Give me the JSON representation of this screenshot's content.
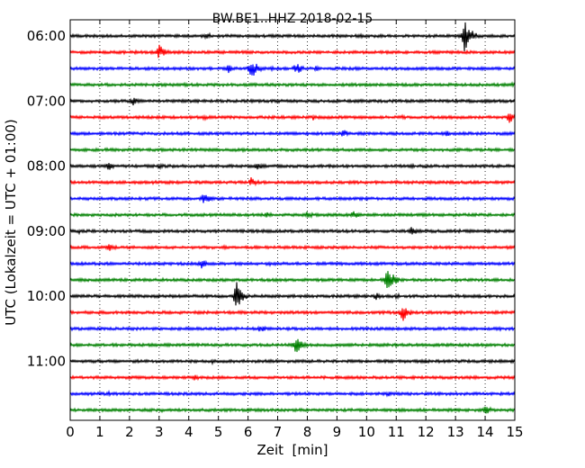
{
  "chart_data": {
    "type": "line",
    "title": "BW.BE1..HHZ 2018-02-15",
    "xlabel": "Zeit  [min]",
    "ylabel": "UTC (Lokalzeit = UTC + 01:00)",
    "xlim": [
      0,
      15
    ],
    "x_ticks": [
      "0",
      "1",
      "2",
      "3",
      "4",
      "5",
      "6",
      "7",
      "8",
      "9",
      "10",
      "11",
      "12",
      "13",
      "14",
      "15"
    ],
    "y_tick_labels": [
      "06:00",
      "07:00",
      "08:00",
      "09:00",
      "10:00",
      "11:00"
    ],
    "row_interval_minutes": 15,
    "first_row": "06:00",
    "colors": [
      "#000000",
      "#ff0000",
      "#0000ff",
      "#008000"
    ],
    "grid": "vertical dotted",
    "series": [
      {
        "start": "06:00",
        "color": "#000000",
        "events": [
          {
            "x": 4.6,
            "a": 0.25
          },
          {
            "x": 13.3,
            "a": 1.0
          },
          {
            "x": 13.55,
            "a": 0.4
          },
          {
            "x": 9.8,
            "a": 0.12
          }
        ]
      },
      {
        "start": "06:15",
        "color": "#ff0000",
        "events": [
          {
            "x": 3.0,
            "a": 0.5
          },
          {
            "x": 2.2,
            "a": 0.15
          },
          {
            "x": 9.0,
            "a": 0.12
          }
        ]
      },
      {
        "start": "06:30",
        "color": "#0000ff",
        "events": [
          {
            "x": 5.3,
            "a": 0.35
          },
          {
            "x": 6.1,
            "a": 0.75
          },
          {
            "x": 7.6,
            "a": 0.5
          },
          {
            "x": 8.3,
            "a": 0.2
          },
          {
            "x": 6.8,
            "a": 0.15
          }
        ]
      },
      {
        "start": "06:45",
        "color": "#008000",
        "events": [
          {
            "x": 3.8,
            "a": 0.15
          },
          {
            "x": 14.9,
            "a": 0.15
          }
        ]
      },
      {
        "start": "07:00",
        "color": "#000000",
        "events": [
          {
            "x": 2.1,
            "a": 0.3
          },
          {
            "x": 7.0,
            "a": 0.12
          },
          {
            "x": 13.0,
            "a": 0.12
          }
        ]
      },
      {
        "start": "07:15",
        "color": "#ff0000",
        "events": [
          {
            "x": 4.5,
            "a": 0.2
          },
          {
            "x": 8.2,
            "a": 0.2
          },
          {
            "x": 11.2,
            "a": 0.2
          },
          {
            "x": 14.8,
            "a": 0.4
          }
        ]
      },
      {
        "start": "07:30",
        "color": "#0000ff",
        "events": [
          {
            "x": 9.2,
            "a": 0.3
          },
          {
            "x": 12.7,
            "a": 0.2
          }
        ]
      },
      {
        "start": "07:45",
        "color": "#008000",
        "events": [
          {
            "x": 1.2,
            "a": 0.15
          },
          {
            "x": 5.8,
            "a": 0.12
          },
          {
            "x": 12.5,
            "a": 0.12
          }
        ]
      },
      {
        "start": "08:00",
        "color": "#000000",
        "events": [
          {
            "x": 1.3,
            "a": 0.3
          },
          {
            "x": 3.0,
            "a": 0.2
          },
          {
            "x": 6.3,
            "a": 0.3
          },
          {
            "x": 11.5,
            "a": 0.15
          },
          {
            "x": 15.0,
            "a": 0.2
          }
        ]
      },
      {
        "start": "08:15",
        "color": "#ff0000",
        "events": [
          {
            "x": 2.8,
            "a": 0.15
          },
          {
            "x": 6.1,
            "a": 0.35
          },
          {
            "x": 11.0,
            "a": 0.15
          }
        ]
      },
      {
        "start": "08:30",
        "color": "#0000ff",
        "events": [
          {
            "x": 4.5,
            "a": 0.5
          },
          {
            "x": 7.3,
            "a": 0.15
          },
          {
            "x": 12.2,
            "a": 0.12
          }
        ]
      },
      {
        "start": "08:45",
        "color": "#008000",
        "events": [
          {
            "x": 6.6,
            "a": 0.25
          },
          {
            "x": 8.0,
            "a": 0.25
          },
          {
            "x": 9.5,
            "a": 0.35
          },
          {
            "x": 11.8,
            "a": 0.12
          }
        ]
      },
      {
        "start": "09:00",
        "color": "#000000",
        "events": [
          {
            "x": 0.3,
            "a": 0.15
          },
          {
            "x": 11.5,
            "a": 0.35
          },
          {
            "x": 13.1,
            "a": 0.15
          }
        ]
      },
      {
        "start": "09:15",
        "color": "#ff0000",
        "events": [
          {
            "x": 1.3,
            "a": 0.3
          },
          {
            "x": 5.2,
            "a": 0.12
          },
          {
            "x": 11.9,
            "a": 0.12
          }
        ]
      },
      {
        "start": "09:30",
        "color": "#0000ff",
        "events": [
          {
            "x": 4.4,
            "a": 0.35
          },
          {
            "x": 6.7,
            "a": 0.15
          },
          {
            "x": 9.1,
            "a": 0.15
          },
          {
            "x": 13.5,
            "a": 0.12
          }
        ]
      },
      {
        "start": "09:45",
        "color": "#008000",
        "events": [
          {
            "x": 10.7,
            "a": 1.0
          },
          {
            "x": 3.1,
            "a": 0.12
          },
          {
            "x": 11.8,
            "a": 0.12
          }
        ]
      },
      {
        "start": "10:00",
        "color": "#000000",
        "events": [
          {
            "x": 5.6,
            "a": 0.95
          },
          {
            "x": 10.3,
            "a": 0.25
          },
          {
            "x": 11.0,
            "a": 0.2
          },
          {
            "x": 8.1,
            "a": 0.12
          }
        ]
      },
      {
        "start": "10:15",
        "color": "#ff0000",
        "events": [
          {
            "x": 11.2,
            "a": 0.65
          },
          {
            "x": 1.0,
            "a": 0.15
          },
          {
            "x": 3.7,
            "a": 0.12
          }
        ]
      },
      {
        "start": "10:30",
        "color": "#0000ff",
        "events": [
          {
            "x": 6.4,
            "a": 0.3
          },
          {
            "x": 12.3,
            "a": 0.12
          },
          {
            "x": 14.5,
            "a": 0.12
          }
        ]
      },
      {
        "start": "10:45",
        "color": "#008000",
        "events": [
          {
            "x": 7.6,
            "a": 0.65
          },
          {
            "x": 3.5,
            "a": 0.12
          },
          {
            "x": 11.0,
            "a": 0.12
          }
        ]
      },
      {
        "start": "11:00",
        "color": "#000000",
        "events": [
          {
            "x": 4.8,
            "a": 0.15
          },
          {
            "x": 11.9,
            "a": 0.15
          },
          {
            "x": 13.4,
            "a": 0.12
          }
        ]
      },
      {
        "start": "11:15",
        "color": "#ff0000",
        "events": [
          {
            "x": 4.2,
            "a": 0.2
          },
          {
            "x": 9.0,
            "a": 0.12
          }
        ]
      },
      {
        "start": "11:30",
        "color": "#0000ff",
        "events": [
          {
            "x": 1.3,
            "a": 0.15
          },
          {
            "x": 10.7,
            "a": 0.2
          }
        ]
      },
      {
        "start": "11:45",
        "color": "#008000",
        "events": [
          {
            "x": 14.0,
            "a": 0.35
          },
          {
            "x": 3.1,
            "a": 0.12
          },
          {
            "x": 9.5,
            "a": 0.12
          }
        ]
      }
    ]
  }
}
